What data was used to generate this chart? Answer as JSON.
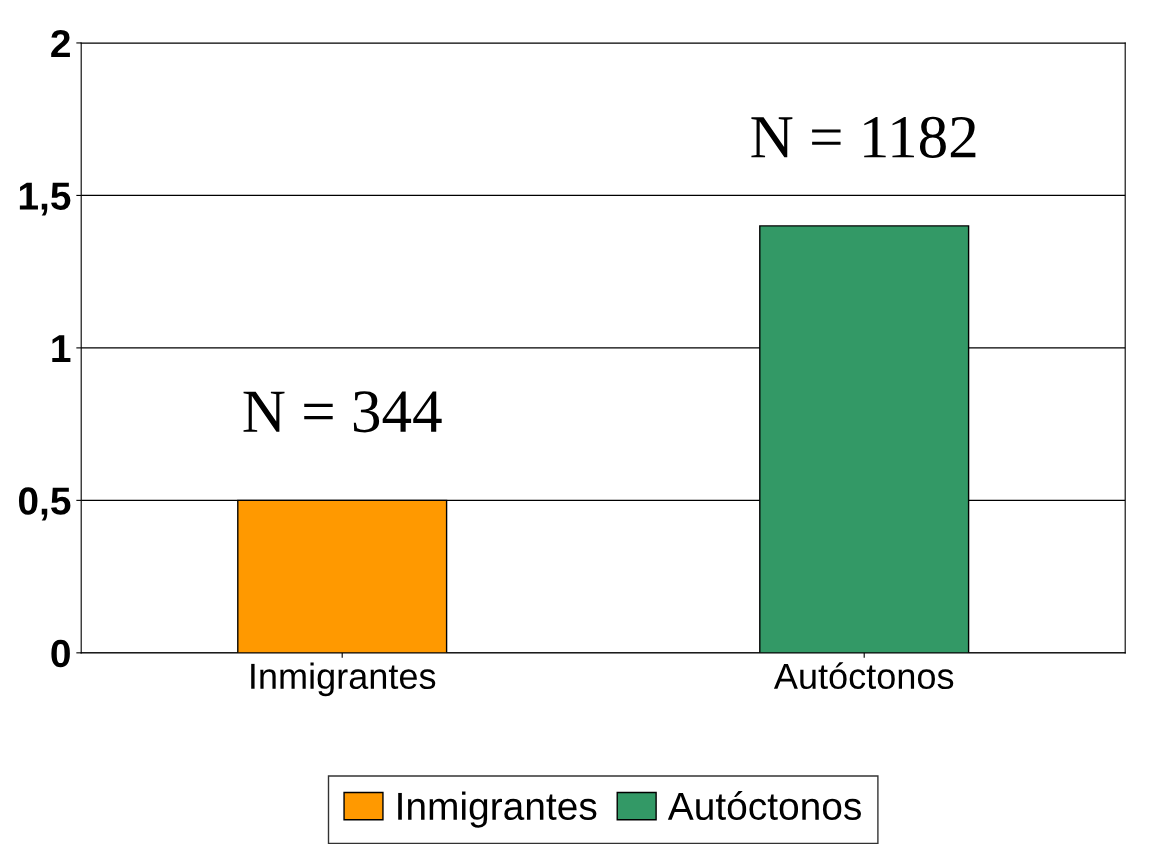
{
  "chart_data": {
    "type": "bar",
    "categories": [
      "Inmigrantes",
      "Autóctonos"
    ],
    "series": [
      {
        "name": "Inmigrantes",
        "color": "#ff9900",
        "values": [
          0.5,
          null
        ]
      },
      {
        "name": "Autóctonos",
        "color": "#339966",
        "values": [
          null,
          1.4
        ]
      }
    ],
    "ylim": [
      0,
      2
    ],
    "yticks": [
      0,
      {
        "value": 0.5,
        "label": "0,5"
      },
      1,
      {
        "value": 1.5,
        "label": "1,5"
      },
      2
    ],
    "grid": "y",
    "legend": "bottom",
    "annotations": [
      "N = 344",
      "N = 1182"
    ]
  }
}
